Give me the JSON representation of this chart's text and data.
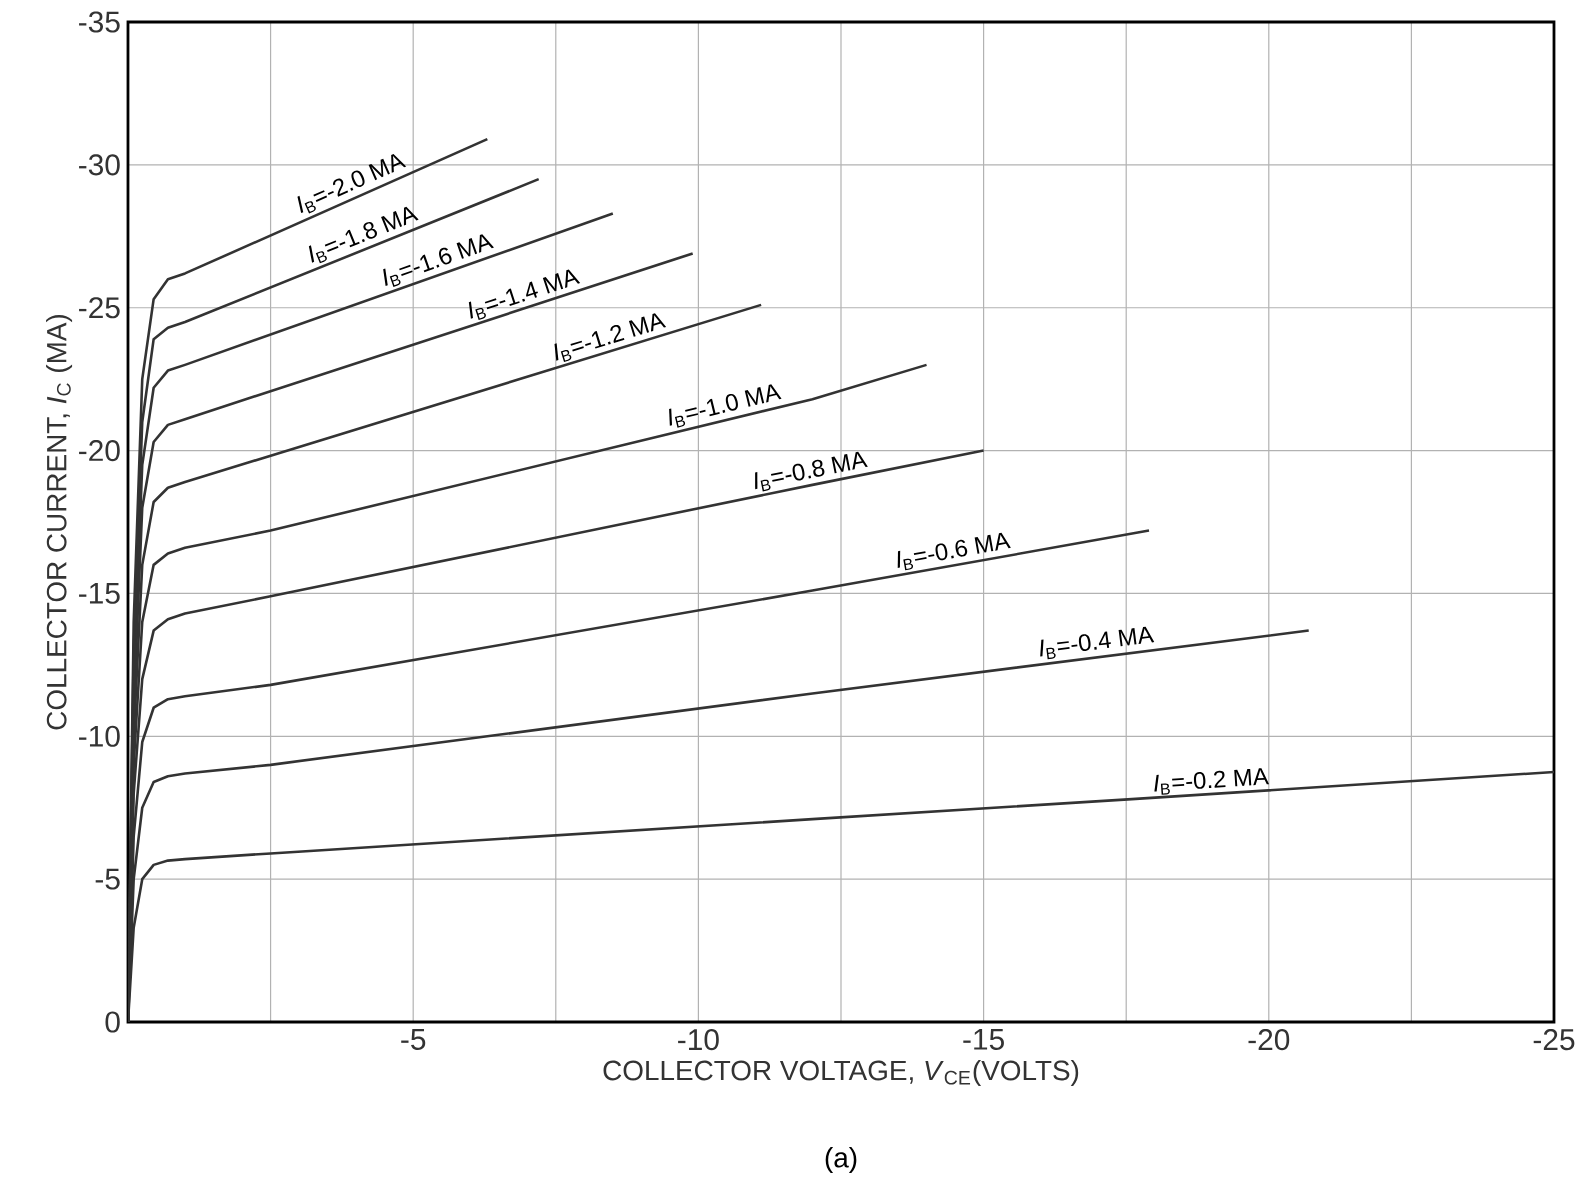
{
  "chart_data": {
    "type": "line",
    "xlabel": "COLLECTOR VOLTAGE, *V*$_{CE}$(VOLTS)",
    "ylabel": "COLLECTOR CURRENT, *I*$_{C}$ (MA)",
    "xlim": [
      0,
      -25
    ],
    "ylim": [
      0,
      -35
    ],
    "xticks": [
      {
        "value": -2.5,
        "label": null
      },
      -5,
      {
        "value": -7.5,
        "label": null
      },
      -10,
      {
        "value": -12.5,
        "label": null
      },
      -15,
      {
        "value": -17.5,
        "label": null
      },
      -20,
      {
        "value": -22.5,
        "label": null
      },
      -25
    ],
    "yticks": [
      0,
      -5,
      -10,
      -15,
      -20,
      -25,
      -30,
      -35
    ],
    "grid": true,
    "series": [
      {
        "color": "#333333",
        "x": [
          0,
          -0.1,
          -0.25,
          -0.45,
          -0.7,
          -1,
          -6.3
        ],
        "values": [
          0,
          -14,
          -22.5,
          -25.3,
          -26.0,
          -26.2,
          -30.9
        ]
      },
      {
        "color": "#333333",
        "x": [
          0,
          -0.1,
          -0.25,
          -0.45,
          -0.7,
          -1,
          -7.2
        ],
        "values": [
          0,
          -13,
          -21,
          -23.9,
          -24.3,
          -24.5,
          -29.5
        ]
      },
      {
        "color": "#333333",
        "x": [
          0,
          -0.1,
          -0.25,
          -0.45,
          -0.7,
          -1,
          -8.5
        ],
        "values": [
          0,
          -12,
          -19.5,
          -22.2,
          -22.8,
          -23.0,
          -28.3
        ]
      },
      {
        "color": "#333333",
        "x": [
          0,
          -0.1,
          -0.25,
          -0.45,
          -0.7,
          -1,
          -9.9
        ],
        "values": [
          0,
          -11,
          -18,
          -20.3,
          -20.9,
          -21.1,
          -26.9
        ]
      },
      {
        "color": "#333333",
        "x": [
          0,
          -0.1,
          -0.25,
          -0.45,
          -0.7,
          -1,
          -11.1
        ],
        "values": [
          0,
          -10,
          -16,
          -18.2,
          -18.7,
          -18.9,
          -25.1
        ]
      },
      {
        "color": "#333333",
        "x": [
          0,
          -0.1,
          -0.25,
          -0.45,
          -0.7,
          -1,
          -2.5,
          -12,
          -14
        ],
        "values": [
          0,
          -9,
          -14,
          -16.0,
          -16.4,
          -16.6,
          -17.2,
          -21.8,
          -23.0
        ]
      },
      {
        "color": "#333333",
        "x": [
          0,
          -0.1,
          -0.25,
          -0.45,
          -0.7,
          -1,
          -2.5,
          -12,
          -15
        ],
        "values": [
          0,
          -8,
          -12,
          -13.7,
          -14.1,
          -14.3,
          -14.9,
          -18.8,
          -20.0
        ]
      },
      {
        "color": "#333333",
        "x": [
          0,
          -0.1,
          -0.25,
          -0.45,
          -0.7,
          -1,
          -2.5,
          -12,
          -17.9
        ],
        "values": [
          0,
          -6.5,
          -9.8,
          -11.0,
          -11.3,
          -11.4,
          -11.8,
          -15.1,
          -17.2
        ]
      },
      {
        "color": "#333333",
        "x": [
          0,
          -0.1,
          -0.25,
          -0.45,
          -0.7,
          -1,
          -2.5,
          -12,
          -20.7
        ],
        "values": [
          0,
          -5,
          -7.5,
          -8.4,
          -8.6,
          -8.7,
          -9.0,
          -11.5,
          -13.7
        ]
      },
      {
        "color": "#333333",
        "x": [
          0,
          -0.1,
          -0.25,
          -0.45,
          -0.7,
          -1,
          -2.5,
          -12,
          -17.6,
          -25
        ],
        "values": [
          0,
          -3.3,
          -5.0,
          -5.5,
          -5.65,
          -5.7,
          -5.9,
          -7.1,
          -7.8,
          -8.75
        ]
      }
    ],
    "annotations": [
      {
        "text": "*I*$_{B}$=-2.0 MA",
        "x": -4.0,
        "y": -28.9
      },
      {
        "text": "*I*$_{B}$=-1.8 MA",
        "x": -4.2,
        "y": -27.1
      },
      {
        "text": "*I*$_{B}$=-1.6 MA",
        "x": -5.5,
        "y": -26.2
      },
      {
        "text": "*I*$_{B}$=-1.4 MA",
        "x": -7.0,
        "y": -25.0
      },
      {
        "text": "*I*$_{B}$=-1.2 MA",
        "x": -8.5,
        "y": -23.5
      },
      {
        "text": "*I*$_{B}$=-1.0 MA",
        "x": -10.5,
        "y": -21.1
      },
      {
        "text": "*I*$_{B}$=-0.8 MA",
        "x": -12.0,
        "y": -18.8
      },
      {
        "text": "*I*$_{B}$=-0.6 MA",
        "x": -14.5,
        "y": -16.0
      },
      {
        "text": "*I*$_{B}$=-0.4 MA",
        "x": -17.0,
        "y": -12.8
      },
      {
        "text": "*I*$_{B}$=-0.2 MA",
        "x": -19.0,
        "y": -7.95
      },
      "(a)"
    ]
  }
}
